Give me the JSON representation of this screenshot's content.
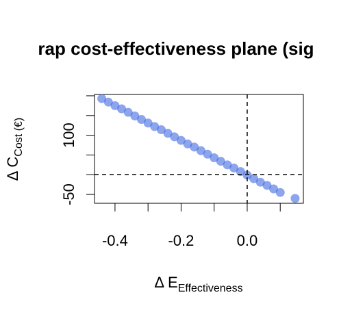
{
  "chart_data": {
    "type": "scatter",
    "title": "rap cost-effectiveness plane (sig",
    "x_label": {
      "text": "Δ E",
      "subscript": "Effectiveness"
    },
    "y_label": {
      "text": "Δ C",
      "subscript": "Cost (€)"
    },
    "x": [
      -0.44,
      -0.42,
      -0.4,
      -0.38,
      -0.36,
      -0.34,
      -0.32,
      -0.3,
      -0.28,
      -0.26,
      -0.24,
      -0.22,
      -0.2,
      -0.18,
      -0.16,
      -0.14,
      -0.12,
      -0.1,
      -0.08,
      -0.06,
      -0.04,
      -0.02,
      0.0,
      0.02,
      0.04,
      0.06,
      0.08,
      0.1,
      0.145
    ],
    "values": [
      193,
      184,
      175,
      167,
      158,
      149,
      140,
      131,
      122,
      114,
      105,
      96,
      87,
      78,
      70,
      61,
      52,
      43,
      34,
      25,
      17,
      8,
      -1,
      -10,
      -19,
      -27,
      -36,
      -45,
      -60
    ],
    "color": "rgba(65,105,225,0.6)",
    "xlim": [
      -0.462,
      0.17
    ],
    "ylim": [
      -72.4,
      203.4
    ],
    "xticks": [
      {
        "value": -0.4,
        "label": "-0.4"
      },
      -0.3,
      {
        "value": -0.2,
        "label": "-0.2"
      },
      -0.1,
      {
        "value": 0,
        "label": "0.0"
      },
      0.1
    ],
    "yticks": [
      {
        "value": -50,
        "label": "-50"
      },
      0,
      50,
      {
        "value": 100,
        "label": "100"
      },
      150,
      200
    ],
    "reference_lines": {
      "x": 0,
      "y": 0
    }
  }
}
